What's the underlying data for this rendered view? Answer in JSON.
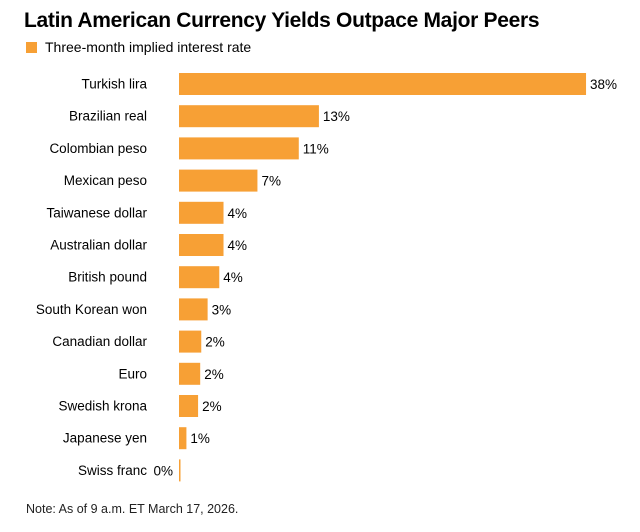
{
  "chart_data": {
    "type": "bar",
    "orientation": "horizontal",
    "title": "Latin American Currency Yields Outpace Major Peers",
    "legend": [
      "Three-month implied interest rate"
    ],
    "categories": [
      "Turkish lira",
      "Brazilian real",
      "Colombian peso",
      "Mexican peso",
      "Taiwanese dollar",
      "Australian dollar",
      "British pound",
      "South Korean won",
      "Canadian dollar",
      "Euro",
      "Swedish krona",
      "Japanese yen",
      "Swiss franc"
    ],
    "values": [
      38.4,
      13.2,
      11.3,
      7.4,
      4.2,
      4.2,
      3.8,
      2.7,
      2.1,
      2.0,
      1.8,
      0.7,
      0.1
    ],
    "value_labels": [
      "38%",
      "13%",
      "11%",
      "7%",
      "4%",
      "4%",
      "4%",
      "3%",
      "2%",
      "2%",
      "2%",
      "1%",
      "0%"
    ],
    "xlim": [
      0,
      40
    ],
    "grid": false,
    "bar_color": "#f7a035"
  },
  "note": "Note: As of 9 a.m. ET March 17, 2026."
}
